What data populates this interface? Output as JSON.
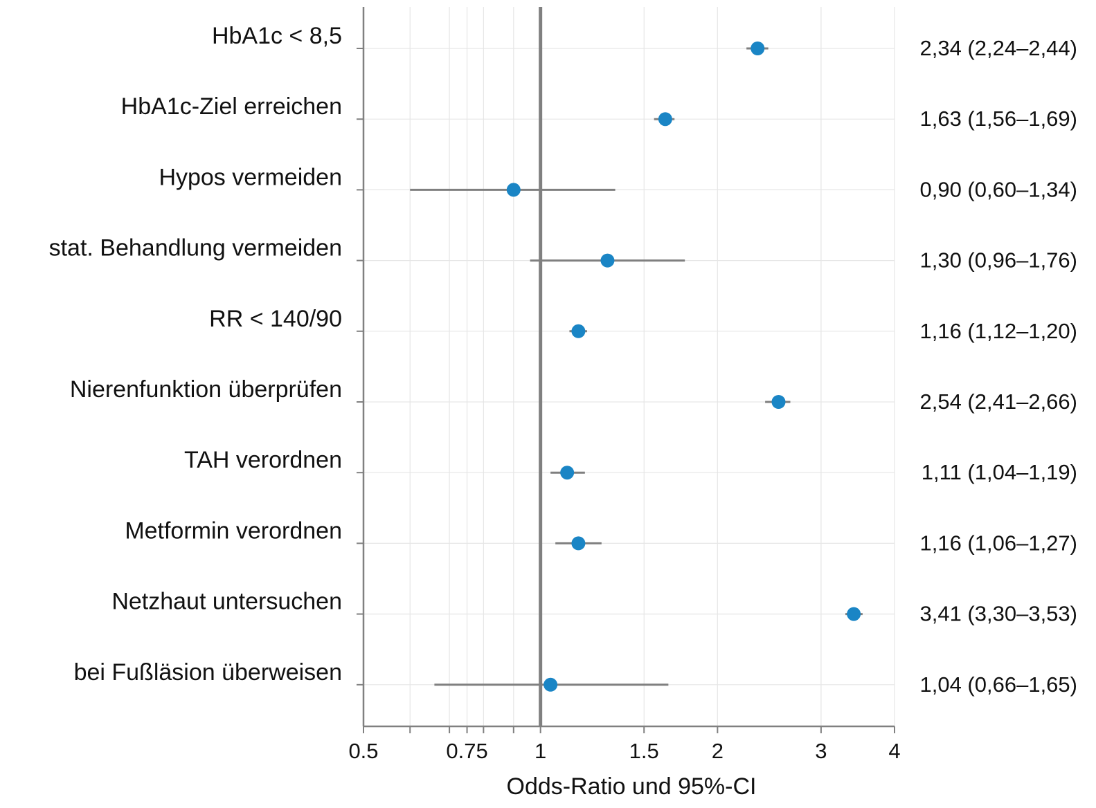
{
  "chart_data": {
    "type": "forest",
    "x_scale": "log",
    "xlabel": "Odds-Ratio und 95%-CI",
    "xlim": [
      0.5,
      4
    ],
    "x_ticks": [
      0.5,
      0.75,
      1,
      1.5,
      2,
      3,
      4
    ],
    "x_tick_labels": [
      "0.5",
      "0.75",
      "1",
      "1.5",
      "2",
      "3",
      "4"
    ],
    "reference_line": 1,
    "grid": true,
    "colors": {
      "point": "#1a85c5",
      "ci_line": "#7f7f7f",
      "reference_line": "#808080",
      "axis": "#808080",
      "grid": "#e6e6e6"
    },
    "rows": [
      {
        "label": "HbA1c < 8,5",
        "or": 2.34,
        "ci_low": 2.24,
        "ci_high": 2.44,
        "text": "2,34 (2,24–2,44)"
      },
      {
        "label": "HbA1c-Ziel erreichen",
        "or": 1.63,
        "ci_low": 1.56,
        "ci_high": 1.69,
        "text": "1,63 (1,56–1,69)"
      },
      {
        "label": "Hypos vermeiden",
        "or": 0.9,
        "ci_low": 0.6,
        "ci_high": 1.34,
        "text": "0,90 (0,60–1,34)"
      },
      {
        "label": "stat. Behandlung vermeiden",
        "or": 1.3,
        "ci_low": 0.96,
        "ci_high": 1.76,
        "text": "1,30 (0,96–1,76)"
      },
      {
        "label": "RR < 140/90",
        "or": 1.16,
        "ci_low": 1.12,
        "ci_high": 1.2,
        "text": "1,16 (1,12–1,20)"
      },
      {
        "label": "Nierenfunktion überprüfen",
        "or": 2.54,
        "ci_low": 2.41,
        "ci_high": 2.66,
        "text": "2,54 (2,41–2,66)"
      },
      {
        "label": "TAH verordnen",
        "or": 1.11,
        "ci_low": 1.04,
        "ci_high": 1.19,
        "text": "1,11 (1,04–1,19)"
      },
      {
        "label": "Metformin verordnen",
        "or": 1.16,
        "ci_low": 1.06,
        "ci_high": 1.27,
        "text": "1,16 (1,06–1,27)"
      },
      {
        "label": "Netzhaut untersuchen",
        "or": 3.41,
        "ci_low": 3.3,
        "ci_high": 3.53,
        "text": "3,41 (3,30–3,53)"
      },
      {
        "label": "bei Fußläsion überweisen",
        "or": 1.04,
        "ci_low": 0.66,
        "ci_high": 1.65,
        "text": "1,04 (0,66–1,65)"
      }
    ]
  }
}
